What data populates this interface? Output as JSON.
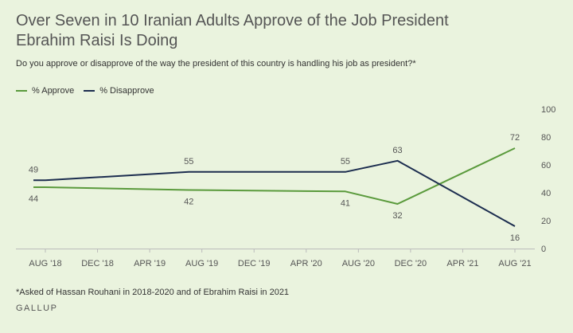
{
  "chart_data": {
    "type": "line",
    "title": "Over Seven in 10 Iranian Adults Approve of the Job President Ebrahim Raisi Is Doing",
    "subtitle": "Do you approve or disapprove of the way the president of this country is handling his job as president?*",
    "x": [
      "2018-08",
      "2019-07",
      "2020-07",
      "2020-11",
      "2021-08"
    ],
    "x_ticks": [
      "AUG '18",
      "DEC '18",
      "APR '19",
      "AUG '19",
      "DEC '19",
      "APR '20",
      "AUG '20",
      "DEC '20",
      "APR '21",
      "AUG '21"
    ],
    "series": [
      {
        "name": "% Approve",
        "color": "#5a9a3c",
        "values": [
          44,
          42,
          41,
          32,
          72
        ]
      },
      {
        "name": "% Disapprove",
        "color": "#1c2d4f",
        "values": [
          49,
          55,
          55,
          63,
          16
        ]
      }
    ],
    "ylim": [
      0,
      100
    ],
    "y_ticks": [
      "0",
      "20",
      "40",
      "60",
      "80",
      "100"
    ],
    "xlabel": "",
    "ylabel": "",
    "legend_position": "top-left",
    "grid": false
  },
  "footnote": "*Asked of Hassan Rouhani in 2018-2020 and of Ebrahim Raisi in 2021",
  "brand": "GALLUP"
}
